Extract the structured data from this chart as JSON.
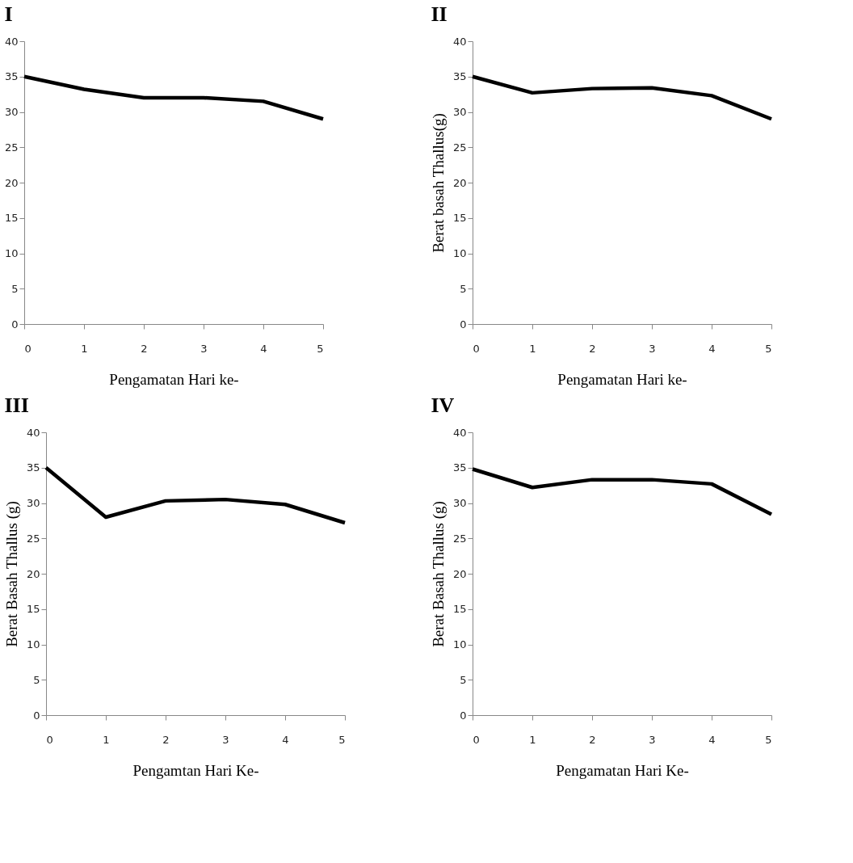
{
  "chart_data": [
    {
      "type": "line",
      "title": "I",
      "xlabel": "Pengamatan Hari  ke-",
      "x": [
        0,
        1,
        2,
        3,
        4,
        5
      ],
      "series": [
        {
          "color": "#000000",
          "values": [
            35,
            33.2,
            32,
            32,
            31.5,
            29
          ]
        }
      ],
      "xlim": [
        0,
        5
      ],
      "xticks": [
        0,
        1,
        2,
        3,
        4,
        5
      ],
      "ylim": [
        0,
        40
      ],
      "yticks": [
        0,
        5,
        10,
        15,
        20,
        25,
        30,
        35,
        40
      ],
      "grid": false,
      "marker": "none",
      "line_style": "solid"
    },
    {
      "type": "line",
      "title": "II",
      "xlabel": "Pengamatan Hari ke-",
      "ylabel": "Berat basah Thallus(g)",
      "x": [
        0,
        1,
        2,
        3,
        4,
        5
      ],
      "series": [
        {
          "color": "#000000",
          "values": [
            35,
            32.7,
            33.3,
            33.4,
            32.3,
            29
          ]
        }
      ],
      "xlim": [
        0,
        5
      ],
      "xticks": [
        0,
        1,
        2,
        3,
        4,
        5
      ],
      "ylim": [
        0,
        40
      ],
      "yticks": [
        0,
        5,
        10,
        15,
        20,
        25,
        30,
        35,
        40
      ],
      "grid": false,
      "marker": "none",
      "line_style": "solid"
    },
    {
      "type": "line",
      "title": "III",
      "xlabel": "Pengamtan Hari Ke-",
      "ylabel": "Berat Basah Thallus (g)",
      "x": [
        0,
        1,
        2,
        3,
        4,
        5
      ],
      "series": [
        {
          "color": "#000000",
          "values": [
            35,
            28,
            30.3,
            30.5,
            29.8,
            27.2
          ]
        }
      ],
      "xlim": [
        0,
        5
      ],
      "xticks": [
        0,
        1,
        2,
        3,
        4,
        5
      ],
      "ylim": [
        0,
        40
      ],
      "yticks": [
        0,
        5,
        10,
        15,
        20,
        25,
        30,
        35,
        40
      ],
      "grid": false,
      "marker": "none",
      "line_style": "solid"
    },
    {
      "type": "line",
      "title": "IV",
      "xlabel": "Pengamatan Hari Ke-",
      "ylabel": "Berat Basah Thallus (g)",
      "x": [
        0,
        1,
        2,
        3,
        4,
        5
      ],
      "series": [
        {
          "color": "#000000",
          "values": [
            34.8,
            32.2,
            33.3,
            33.3,
            32.7,
            28.4
          ]
        }
      ],
      "xlim": [
        0,
        5
      ],
      "xticks": [
        0,
        1,
        2,
        3,
        4,
        5
      ],
      "ylim": [
        0,
        40
      ],
      "yticks": [
        0,
        5,
        10,
        15,
        20,
        25,
        30,
        35,
        40
      ],
      "grid": false,
      "marker": "none",
      "line_style": "solid"
    }
  ]
}
